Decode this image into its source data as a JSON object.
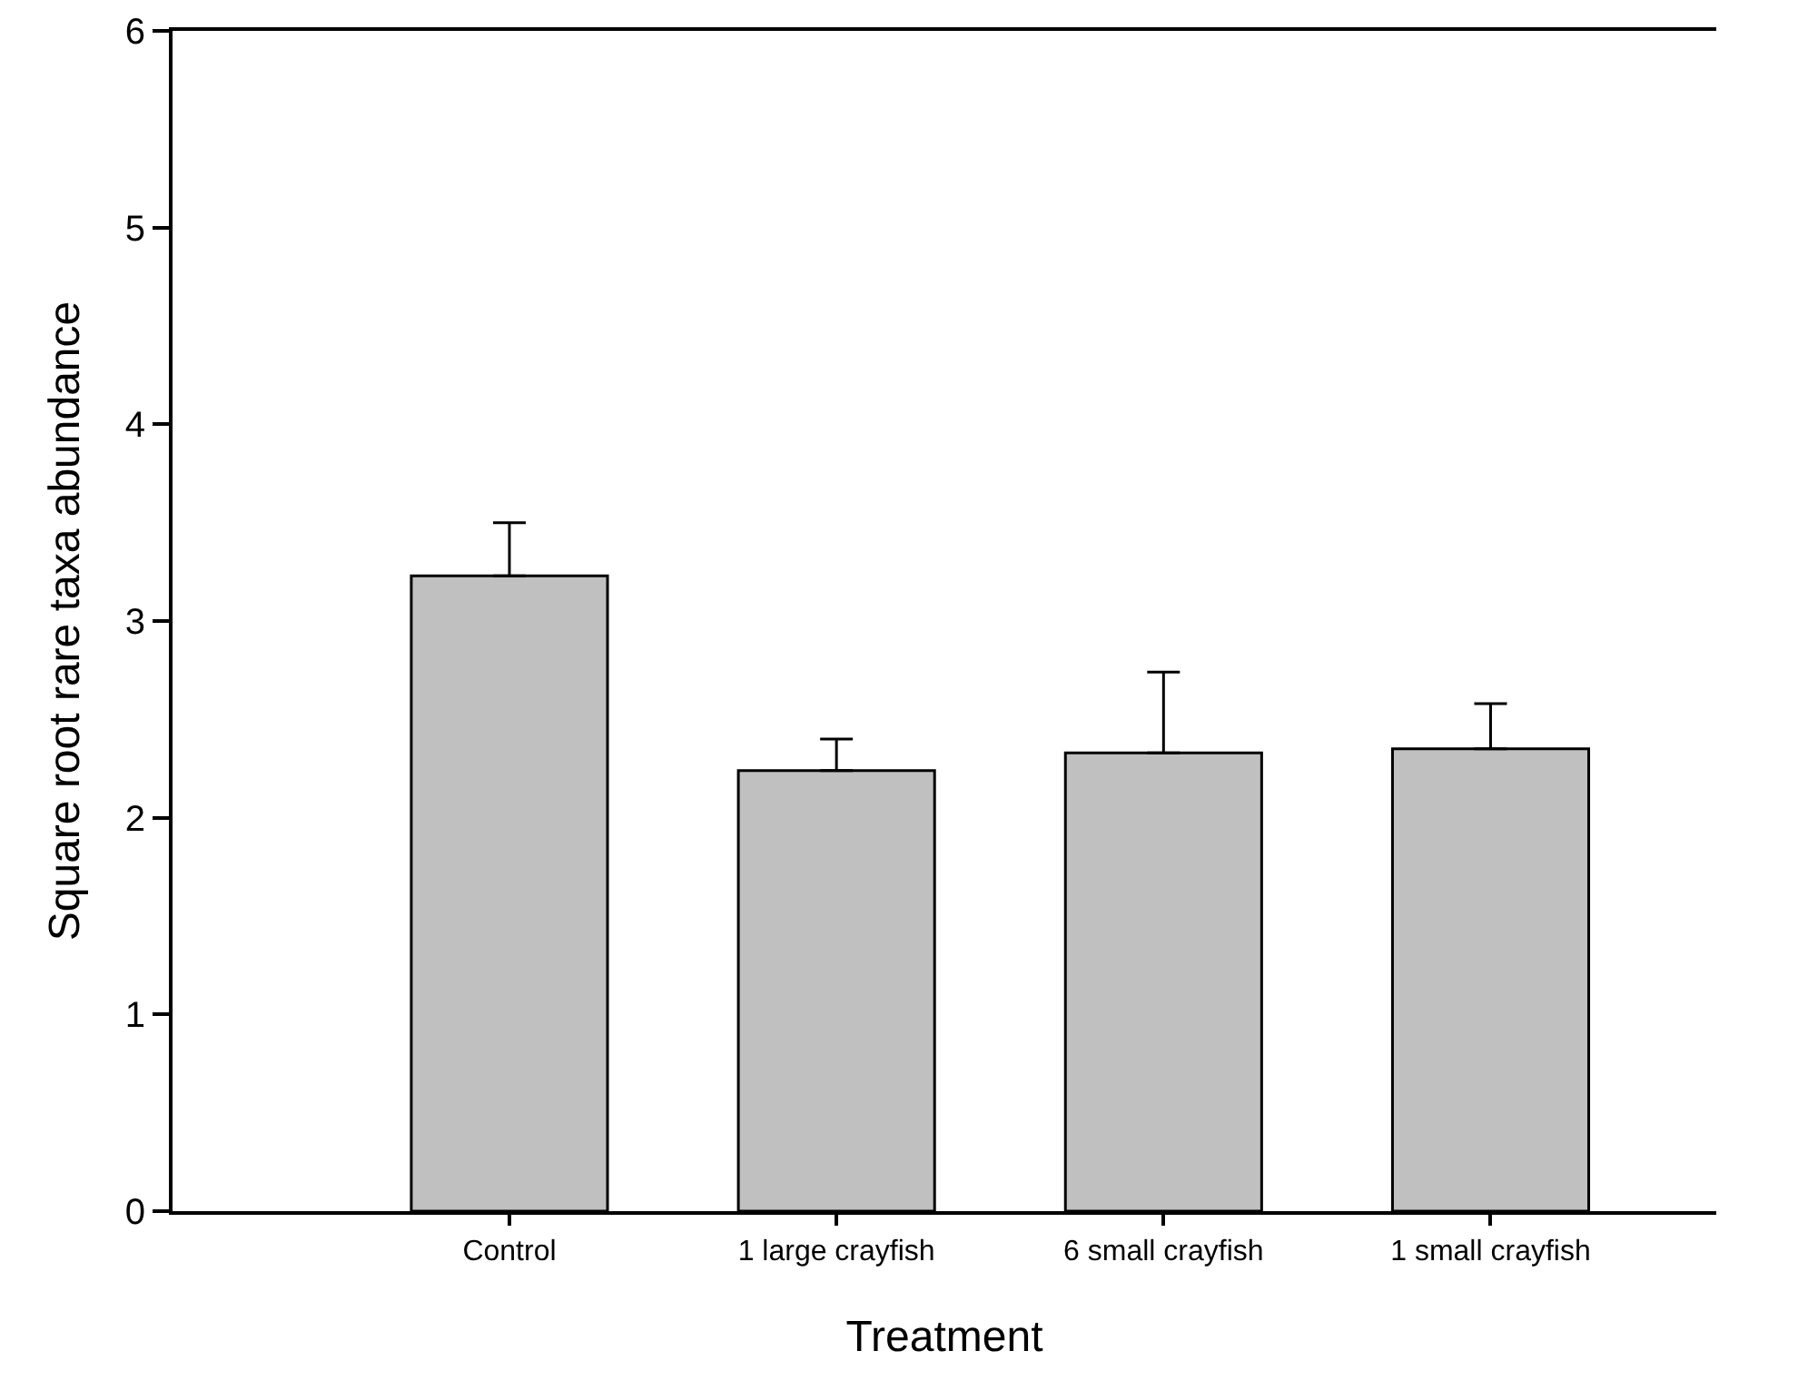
{
  "chart_data": {
    "type": "bar",
    "xlabel": "Treatment",
    "ylabel": "Square root rare taxa abundance",
    "categories": [
      "Control",
      "1 large crayfish",
      "6 small crayfish",
      "1 small crayfish"
    ],
    "values": [
      3.23,
      2.24,
      2.33,
      2.35
    ],
    "color": "#c0c0c0",
    "errors": [
      [
        3.23,
        3.5
      ],
      [
        2.24,
        2.4
      ],
      [
        2.33,
        2.74
      ],
      [
        2.35,
        2.58
      ]
    ],
    "ylim": [
      0,
      6
    ],
    "yticks": [
      0,
      1,
      2,
      3,
      4,
      5,
      6
    ],
    "grid": false,
    "legend": false
  }
}
